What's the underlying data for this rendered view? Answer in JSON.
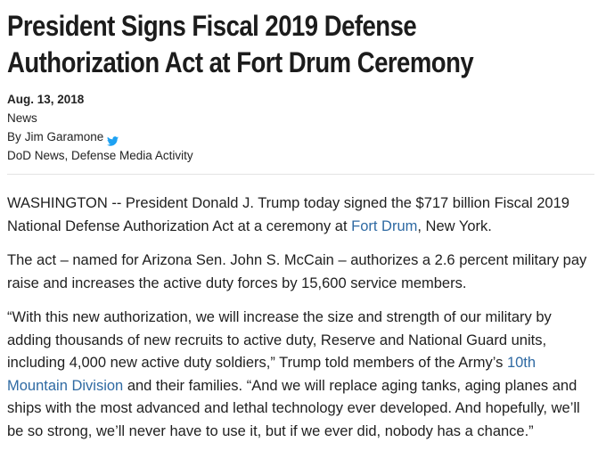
{
  "article": {
    "headline_line1": "President Signs Fiscal 2019 Defense",
    "headline_line2": "Authorization Act at Fort Drum Ceremony",
    "date": "Aug. 13, 2018",
    "category": "News",
    "byline_prefix": "By",
    "author": "Jim Garamone",
    "author_social_icon": "twitter-icon",
    "source": "DoD News, Defense Media Activity",
    "paragraphs": {
      "p1": {
        "before": "WASHINGTON -- President Donald J. Trump today signed the $717 billion Fiscal 2019 National Defense Authorization Act at a ceremony at ",
        "link": "Fort Drum",
        "after": ", New York."
      },
      "p2": {
        "text": "The act – named for Arizona Sen. John S. McCain – authorizes a 2.6 percent military pay raise and increases the active duty forces by 15,600 service members."
      },
      "p3": {
        "before": "“With this new authorization, we will increase the size and strength of our military by adding thousands of new recruits to active duty, Reserve and National Guard units, including 4,000 new active duty soldiers,” Trump told members of the Army’s ",
        "link": "10th Mountain Division",
        "after": " and their families. “And we will replace aging tanks, aging planes and ships with the most advanced and lethal technology ever developed. And hopefully, we’ll be so strong, we’ll never have to use it, but if we ever did, nobody has a chance.”"
      }
    }
  },
  "colors": {
    "link": "#2f6aa3",
    "twitter": "#1da1f2",
    "text": "#1f1f1f"
  }
}
